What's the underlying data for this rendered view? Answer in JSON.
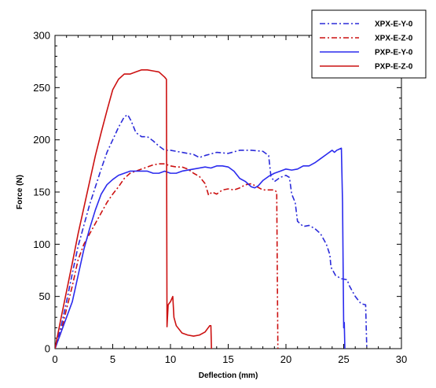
{
  "chart_data": {
    "type": "line",
    "title": "",
    "xlabel": "Deflection (mm)",
    "ylabel": "Force (N)",
    "xlim": [
      0,
      30
    ],
    "ylim": [
      0,
      300
    ],
    "xticks": [
      0,
      5,
      10,
      15,
      20,
      25,
      30
    ],
    "yticks": [
      0,
      50,
      100,
      150,
      200,
      250,
      300
    ],
    "grid": false,
    "legend_position": "top-right",
    "series": [
      {
        "name": "XPX-E-Y-0",
        "color": "#2b2bd9",
        "dash": "dashdot",
        "points": [
          [
            0,
            0
          ],
          [
            0.5,
            20
          ],
          [
            1,
            45
          ],
          [
            1.5,
            72
          ],
          [
            2,
            98
          ],
          [
            2.5,
            118
          ],
          [
            3,
            138
          ],
          [
            3.5,
            155
          ],
          [
            4,
            172
          ],
          [
            4.5,
            188
          ],
          [
            5,
            200
          ],
          [
            5.5,
            212
          ],
          [
            6,
            222
          ],
          [
            6.3,
            224
          ],
          [
            6.6,
            218
          ],
          [
            7,
            207
          ],
          [
            7.5,
            203
          ],
          [
            8,
            203
          ],
          [
            8.5,
            199
          ],
          [
            9,
            194
          ],
          [
            9.5,
            190
          ],
          [
            10,
            190
          ],
          [
            11,
            188
          ],
          [
            12,
            186
          ],
          [
            12.5,
            183
          ],
          [
            13,
            185
          ],
          [
            14,
            188
          ],
          [
            15,
            187
          ],
          [
            16,
            190
          ],
          [
            17,
            190
          ],
          [
            18,
            189
          ],
          [
            18.5,
            185
          ],
          [
            18.7,
            165
          ],
          [
            19,
            160
          ],
          [
            19.5,
            164
          ],
          [
            20,
            166
          ],
          [
            20.3,
            164
          ],
          [
            20.5,
            148
          ],
          [
            20.8,
            140
          ],
          [
            21,
            122
          ],
          [
            21.5,
            117
          ],
          [
            22,
            118
          ],
          [
            22.5,
            115
          ],
          [
            23,
            110
          ],
          [
            23.5,
            100
          ],
          [
            23.8,
            90
          ],
          [
            23.9,
            78
          ],
          [
            24.3,
            70
          ],
          [
            24.8,
            67
          ],
          [
            25.3,
            66
          ],
          [
            25.5,
            60
          ],
          [
            26,
            50
          ],
          [
            26.5,
            43
          ],
          [
            26.9,
            42
          ],
          [
            27,
            0
          ]
        ]
      },
      {
        "name": "XPX-E-Z-0",
        "color": "#cc1111",
        "dash": "dashdot",
        "points": [
          [
            0,
            0
          ],
          [
            0.5,
            15
          ],
          [
            1,
            38
          ],
          [
            1.5,
            60
          ],
          [
            2,
            85
          ],
          [
            2.5,
            100
          ],
          [
            3,
            110
          ],
          [
            3.5,
            120
          ],
          [
            4,
            130
          ],
          [
            4.5,
            140
          ],
          [
            5,
            148
          ],
          [
            5.5,
            155
          ],
          [
            6,
            163
          ],
          [
            6.5,
            168
          ],
          [
            7,
            170
          ],
          [
            7.5,
            172
          ],
          [
            8,
            174
          ],
          [
            8.5,
            176
          ],
          [
            9,
            177
          ],
          [
            9.5,
            177
          ],
          [
            10,
            175
          ],
          [
            10.5,
            174
          ],
          [
            11,
            174
          ],
          [
            11.5,
            172
          ],
          [
            12,
            168
          ],
          [
            12.5,
            165
          ],
          [
            13,
            158
          ],
          [
            13.3,
            147
          ],
          [
            13.6,
            150
          ],
          [
            14,
            148
          ],
          [
            14.5,
            152
          ],
          [
            15,
            153
          ],
          [
            15.5,
            152
          ],
          [
            16,
            154
          ],
          [
            16.5,
            157
          ],
          [
            17,
            158
          ],
          [
            17.5,
            155
          ],
          [
            18,
            152
          ],
          [
            18.5,
            152
          ],
          [
            19,
            152
          ],
          [
            19.2,
            150
          ],
          [
            19.3,
            0
          ]
        ]
      },
      {
        "name": "PXP-E-Y-0",
        "color": "#2b2bee",
        "dash": "solid",
        "points": [
          [
            0,
            0
          ],
          [
            0.5,
            15
          ],
          [
            1,
            30
          ],
          [
            1.5,
            45
          ],
          [
            2,
            70
          ],
          [
            2.5,
            95
          ],
          [
            3,
            115
          ],
          [
            3.5,
            133
          ],
          [
            4,
            148
          ],
          [
            4.5,
            157
          ],
          [
            5,
            162
          ],
          [
            5.5,
            166
          ],
          [
            6,
            168
          ],
          [
            6.5,
            170
          ],
          [
            7,
            170
          ],
          [
            7.5,
            170
          ],
          [
            8,
            170
          ],
          [
            8.5,
            168
          ],
          [
            9,
            168
          ],
          [
            9.5,
            170
          ],
          [
            10,
            168
          ],
          [
            10.5,
            168
          ],
          [
            11,
            170
          ],
          [
            12,
            172
          ],
          [
            13,
            174
          ],
          [
            13.5,
            173
          ],
          [
            14,
            175
          ],
          [
            14.5,
            175
          ],
          [
            15,
            174
          ],
          [
            15.5,
            170
          ],
          [
            16,
            163
          ],
          [
            16.5,
            160
          ],
          [
            17,
            155
          ],
          [
            17.3,
            154
          ],
          [
            17.6,
            156
          ],
          [
            18,
            161
          ],
          [
            18.5,
            165
          ],
          [
            19,
            168
          ],
          [
            19.5,
            170
          ],
          [
            20,
            172
          ],
          [
            20.5,
            171
          ],
          [
            21,
            172
          ],
          [
            21.5,
            175
          ],
          [
            22,
            175
          ],
          [
            22.5,
            178
          ],
          [
            23,
            182
          ],
          [
            23.5,
            186
          ],
          [
            24,
            190
          ],
          [
            24.2,
            188
          ],
          [
            24.4,
            190
          ],
          [
            24.6,
            191
          ],
          [
            24.8,
            192
          ],
          [
            24.9,
            140
          ],
          [
            25,
            20
          ],
          [
            25.05,
            25
          ],
          [
            25.1,
            0
          ]
        ]
      },
      {
        "name": "PXP-E-Z-0",
        "color": "#cc1111",
        "dash": "solid",
        "points": [
          [
            0,
            0
          ],
          [
            0.5,
            28
          ],
          [
            1,
            55
          ],
          [
            1.5,
            82
          ],
          [
            2,
            110
          ],
          [
            2.5,
            135
          ],
          [
            3,
            160
          ],
          [
            3.5,
            185
          ],
          [
            4,
            207
          ],
          [
            4.5,
            228
          ],
          [
            5,
            248
          ],
          [
            5.5,
            258
          ],
          [
            6,
            263
          ],
          [
            6.5,
            263
          ],
          [
            7,
            265
          ],
          [
            7.5,
            267
          ],
          [
            8,
            267
          ],
          [
            8.5,
            266
          ],
          [
            9,
            265
          ],
          [
            9.5,
            260
          ],
          [
            9.65,
            258
          ],
          [
            9.7,
            21
          ],
          [
            9.8,
            42
          ],
          [
            10,
            45
          ],
          [
            10.2,
            50
          ],
          [
            10.3,
            30
          ],
          [
            10.5,
            22
          ],
          [
            11,
            15
          ],
          [
            11.5,
            13
          ],
          [
            12,
            12
          ],
          [
            12.5,
            13
          ],
          [
            13,
            16
          ],
          [
            13.4,
            22
          ],
          [
            13.5,
            22
          ],
          [
            13.55,
            0
          ]
        ]
      }
    ]
  }
}
